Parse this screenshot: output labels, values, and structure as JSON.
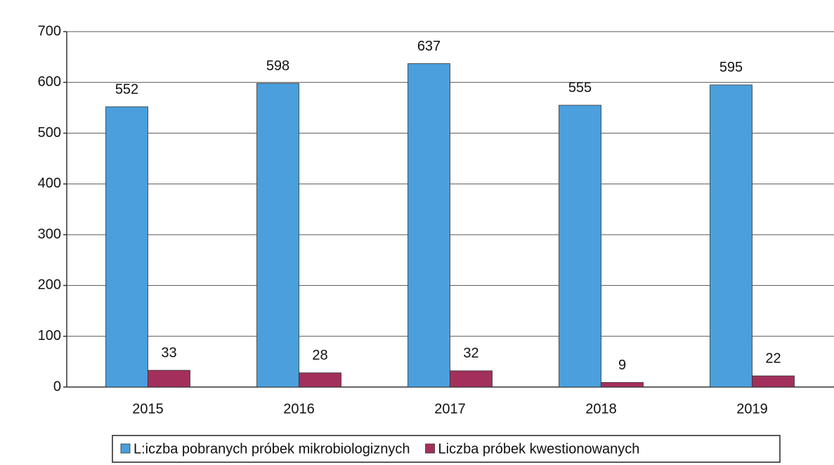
{
  "chart_data": {
    "type": "bar",
    "categories": [
      "2015",
      "2016",
      "2017",
      "2018",
      "2019"
    ],
    "series": [
      {
        "name": "L:iczba pobranych próbek mikrobiologiznych",
        "color": "#4a9fdc",
        "values": [
          552,
          598,
          637,
          555,
          595
        ]
      },
      {
        "name": "Liczba próbek kwestionowanych",
        "color": "#a3305c",
        "values": [
          33,
          28,
          32,
          9,
          22
        ]
      }
    ],
    "ylim": [
      0,
      700
    ],
    "yticks": [
      0,
      100,
      200,
      300,
      400,
      500,
      600,
      700
    ],
    "grid": true,
    "legend": "bottom"
  }
}
